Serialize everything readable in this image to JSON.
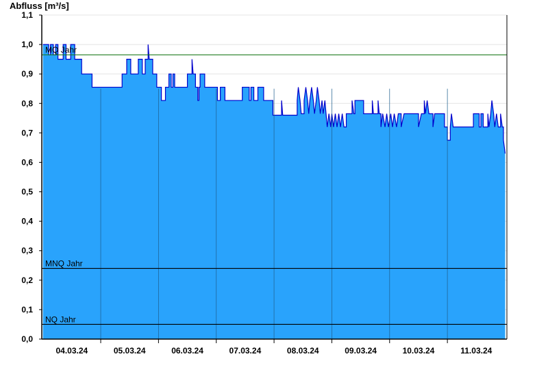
{
  "chart_data": {
    "type": "area",
    "title": "",
    "ylabel": "Abfluss [m³/s]",
    "xlabel": "",
    "ylim": [
      0,
      1.1
    ],
    "y_ticks": [
      "0,0",
      "0,1",
      "0,2",
      "0,3",
      "0,4",
      "0,5",
      "0,6",
      "0,7",
      "0,8",
      "0,9",
      "1,0",
      "1,1"
    ],
    "x_ticks": [
      "04.03.24",
      "05.03.24",
      "06.03.24",
      "07.03.24",
      "08.03.24",
      "09.03.24",
      "10.03.24",
      "11.03.24"
    ],
    "x_range_days": [
      0,
      8
    ],
    "grid": true,
    "reference_lines": [
      {
        "name": "MQ Jahr",
        "value": 0.965,
        "color": "#1a7a1a"
      },
      {
        "name": "MNQ Jahr",
        "value": 0.24,
        "color": "#000000"
      },
      {
        "name": "NQ Jahr",
        "value": 0.05,
        "color": "#000000"
      }
    ],
    "series": [
      {
        "fill_color": "#29a3fc",
        "line_color": "#0000cc",
        "points": [
          [
            0.0,
            1.0
          ],
          [
            0.1,
            1.0
          ],
          [
            0.1,
            0.965
          ],
          [
            0.13,
            0.965
          ],
          [
            0.13,
            1.0
          ],
          [
            0.18,
            1.0
          ],
          [
            0.18,
            0.965
          ],
          [
            0.22,
            0.965
          ],
          [
            0.22,
            1.0
          ],
          [
            0.26,
            1.0
          ],
          [
            0.26,
            0.95
          ],
          [
            0.35,
            0.95
          ],
          [
            0.35,
            1.0
          ],
          [
            0.4,
            1.0
          ],
          [
            0.4,
            0.95
          ],
          [
            0.48,
            0.95
          ],
          [
            0.48,
            1.0
          ],
          [
            0.55,
            1.0
          ],
          [
            0.55,
            0.95
          ],
          [
            0.67,
            0.95
          ],
          [
            0.67,
            0.9
          ],
          [
            0.85,
            0.9
          ],
          [
            0.85,
            0.855
          ],
          [
            1.37,
            0.855
          ],
          [
            1.37,
            0.9
          ],
          [
            1.45,
            0.9
          ],
          [
            1.45,
            0.95
          ],
          [
            1.52,
            0.95
          ],
          [
            1.52,
            0.9
          ],
          [
            1.65,
            0.9
          ],
          [
            1.65,
            0.95
          ],
          [
            1.72,
            0.95
          ],
          [
            1.72,
            0.9
          ],
          [
            1.77,
            0.9
          ],
          [
            1.77,
            0.95
          ],
          [
            1.82,
            0.95
          ],
          [
            1.82,
            1.0
          ],
          [
            1.84,
            0.95
          ],
          [
            1.9,
            0.95
          ],
          [
            1.9,
            0.9
          ],
          [
            1.97,
            0.9
          ],
          [
            1.97,
            0.855
          ],
          [
            2.05,
            0.855
          ],
          [
            2.05,
            0.81
          ],
          [
            2.12,
            0.81
          ],
          [
            2.12,
            0.855
          ],
          [
            2.18,
            0.855
          ],
          [
            2.18,
            0.9
          ],
          [
            2.22,
            0.9
          ],
          [
            2.22,
            0.855
          ],
          [
            2.25,
            0.855
          ],
          [
            2.25,
            0.9
          ],
          [
            2.28,
            0.9
          ],
          [
            2.28,
            0.855
          ],
          [
            2.5,
            0.855
          ],
          [
            2.5,
            0.9
          ],
          [
            2.58,
            0.9
          ],
          [
            2.58,
            0.95
          ],
          [
            2.6,
            0.9
          ],
          [
            2.64,
            0.9
          ],
          [
            2.64,
            0.855
          ],
          [
            2.68,
            0.855
          ],
          [
            2.68,
            0.81
          ],
          [
            2.7,
            0.81
          ],
          [
            2.7,
            0.855
          ],
          [
            2.72,
            0.855
          ],
          [
            2.72,
            0.9
          ],
          [
            2.8,
            0.9
          ],
          [
            2.8,
            0.855
          ],
          [
            3.02,
            0.855
          ],
          [
            3.02,
            0.81
          ],
          [
            3.07,
            0.81
          ],
          [
            3.07,
            0.855
          ],
          [
            3.15,
            0.855
          ],
          [
            3.15,
            0.81
          ],
          [
            3.45,
            0.81
          ],
          [
            3.45,
            0.855
          ],
          [
            3.57,
            0.855
          ],
          [
            3.57,
            0.81
          ],
          [
            3.6,
            0.81
          ],
          [
            3.6,
            0.855
          ],
          [
            3.65,
            0.855
          ],
          [
            3.65,
            0.81
          ],
          [
            3.72,
            0.81
          ],
          [
            3.72,
            0.855
          ],
          [
            3.82,
            0.855
          ],
          [
            3.82,
            0.81
          ],
          [
            3.98,
            0.81
          ],
          [
            3.98,
            0.76
          ],
          [
            4.13,
            0.76
          ],
          [
            4.13,
            0.81
          ],
          [
            4.15,
            0.76
          ],
          [
            4.4,
            0.76
          ],
          [
            4.4,
            0.81
          ],
          [
            4.42,
            0.855
          ],
          [
            4.45,
            0.81
          ],
          [
            4.47,
            0.765
          ],
          [
            4.52,
            0.765
          ],
          [
            4.52,
            0.81
          ],
          [
            4.55,
            0.855
          ],
          [
            4.58,
            0.81
          ],
          [
            4.6,
            0.765
          ],
          [
            4.62,
            0.81
          ],
          [
            4.65,
            0.855
          ],
          [
            4.68,
            0.81
          ],
          [
            4.7,
            0.765
          ],
          [
            4.73,
            0.81
          ],
          [
            4.75,
            0.855
          ],
          [
            4.78,
            0.81
          ],
          [
            4.8,
            0.765
          ],
          [
            4.83,
            0.81
          ],
          [
            4.85,
            0.765
          ],
          [
            4.88,
            0.81
          ],
          [
            4.9,
            0.765
          ],
          [
            4.92,
            0.72
          ],
          [
            4.95,
            0.765
          ],
          [
            4.98,
            0.72
          ],
          [
            5.0,
            0.765
          ],
          [
            5.03,
            0.72
          ],
          [
            5.06,
            0.765
          ],
          [
            5.09,
            0.72
          ],
          [
            5.12,
            0.765
          ],
          [
            5.15,
            0.72
          ],
          [
            5.18,
            0.765
          ],
          [
            5.21,
            0.72
          ],
          [
            5.25,
            0.72
          ],
          [
            5.25,
            0.765
          ],
          [
            5.35,
            0.765
          ],
          [
            5.35,
            0.81
          ],
          [
            5.38,
            0.765
          ],
          [
            5.4,
            0.765
          ],
          [
            5.4,
            0.81
          ],
          [
            5.55,
            0.81
          ],
          [
            5.55,
            0.765
          ],
          [
            5.7,
            0.765
          ],
          [
            5.7,
            0.81
          ],
          [
            5.72,
            0.765
          ],
          [
            5.8,
            0.765
          ],
          [
            5.8,
            0.81
          ],
          [
            5.82,
            0.765
          ],
          [
            5.85,
            0.765
          ],
          [
            5.85,
            0.72
          ],
          [
            5.88,
            0.765
          ],
          [
            5.92,
            0.72
          ],
          [
            5.95,
            0.765
          ],
          [
            5.98,
            0.72
          ],
          [
            6.02,
            0.765
          ],
          [
            6.05,
            0.72
          ],
          [
            6.08,
            0.765
          ],
          [
            6.12,
            0.72
          ],
          [
            6.15,
            0.765
          ],
          [
            6.2,
            0.765
          ],
          [
            6.2,
            0.72
          ],
          [
            6.25,
            0.765
          ],
          [
            6.5,
            0.765
          ],
          [
            6.5,
            0.72
          ],
          [
            6.55,
            0.765
          ],
          [
            6.6,
            0.765
          ],
          [
            6.6,
            0.81
          ],
          [
            6.62,
            0.765
          ],
          [
            6.65,
            0.81
          ],
          [
            6.68,
            0.765
          ],
          [
            6.75,
            0.765
          ],
          [
            6.75,
            0.72
          ],
          [
            6.78,
            0.765
          ],
          [
            6.95,
            0.765
          ],
          [
            6.95,
            0.72
          ],
          [
            7.0,
            0.72
          ],
          [
            7.0,
            0.675
          ],
          [
            7.05,
            0.675
          ],
          [
            7.05,
            0.72
          ],
          [
            7.07,
            0.765
          ],
          [
            7.1,
            0.72
          ],
          [
            7.45,
            0.72
          ],
          [
            7.45,
            0.765
          ],
          [
            7.55,
            0.765
          ],
          [
            7.55,
            0.72
          ],
          [
            7.58,
            0.72
          ],
          [
            7.58,
            0.765
          ],
          [
            7.62,
            0.765
          ],
          [
            7.62,
            0.72
          ],
          [
            7.7,
            0.72
          ],
          [
            7.7,
            0.765
          ],
          [
            7.72,
            0.72
          ],
          [
            7.75,
            0.765
          ],
          [
            7.77,
            0.81
          ],
          [
            7.8,
            0.765
          ],
          [
            7.82,
            0.72
          ],
          [
            7.85,
            0.765
          ],
          [
            7.88,
            0.72
          ],
          [
            7.92,
            0.72
          ],
          [
            7.92,
            0.765
          ],
          [
            7.95,
            0.72
          ],
          [
            7.97,
            0.72
          ],
          [
            7.97,
            0.675
          ],
          [
            8.0,
            0.63
          ]
        ]
      }
    ]
  }
}
